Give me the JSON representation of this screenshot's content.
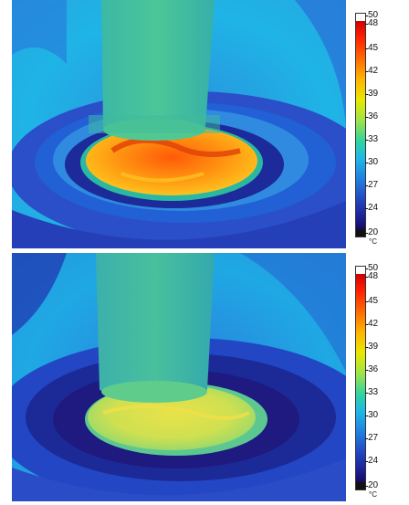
{
  "panels": [
    {
      "id": "top",
      "scale_ticks": [
        "50",
        "48",
        "45",
        "42",
        "39",
        "36",
        "33",
        "30",
        "27",
        "24",
        "20"
      ],
      "unit": "°C"
    },
    {
      "id": "bottom",
      "scale_ticks": [
        "50",
        "48",
        "45",
        "42",
        "39",
        "36",
        "33",
        "30",
        "27",
        "24",
        "20"
      ],
      "unit": "°C"
    }
  ],
  "colors": {
    "background_cyan": "#1fb4e6",
    "rim_blue": "#2a4fc8",
    "deep_blue": "#1c1a82",
    "cylinder_green": "#3dbf9a",
    "hot_orange": "#ff8a10",
    "hot_red": "#e64a0c",
    "warm_yellow": "#dde24a"
  }
}
